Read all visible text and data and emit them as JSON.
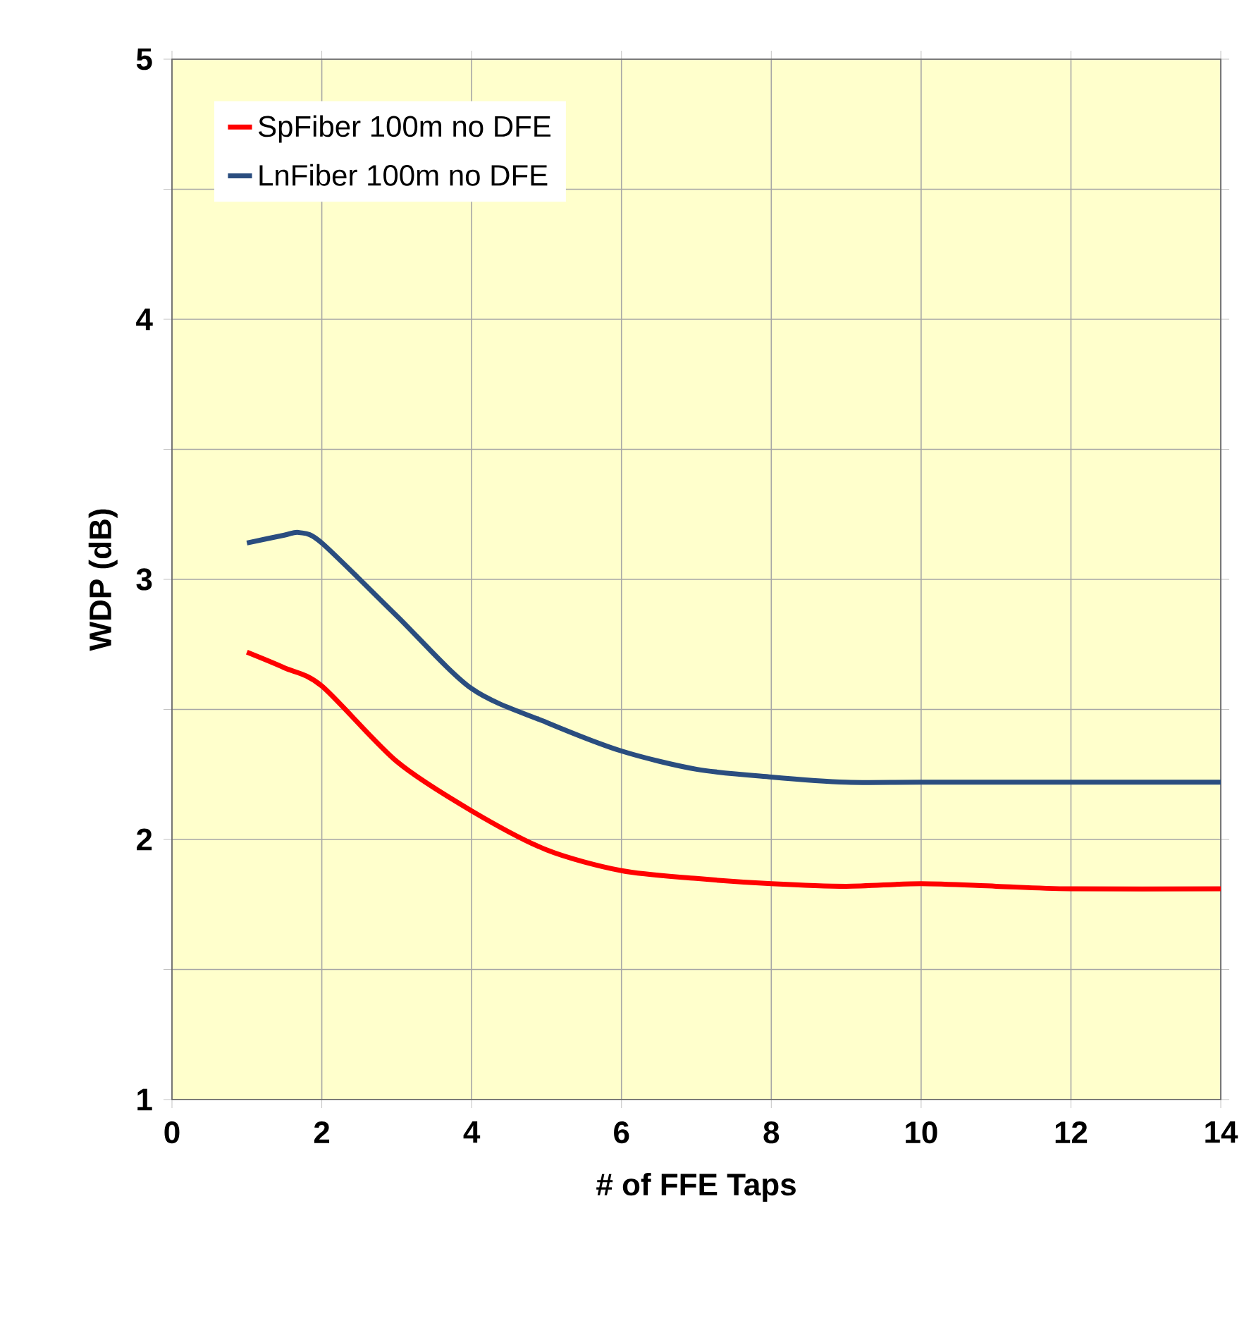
{
  "chart_data": {
    "type": "line",
    "xlabel": "# of FFE Taps",
    "ylabel": "WDP (dB)",
    "xlim": [
      0,
      14
    ],
    "xticks": [
      0,
      2,
      4,
      6,
      8,
      10,
      12,
      14
    ],
    "ylim": [
      1,
      5
    ],
    "yticks": [
      1,
      {
        "value": 1.5,
        "label": null
      },
      2,
      {
        "value": 2.5,
        "label": null
      },
      3,
      {
        "value": 3.5,
        "label": null
      },
      4,
      {
        "value": 4.5,
        "label": null
      },
      5
    ],
    "grid": true,
    "legend": "top left",
    "marker": "none",
    "line_style": "solid",
    "series": [
      {
        "name": "SpFiber 100m no DFE",
        "color": "#ff0000",
        "x": [
          1,
          1.5,
          2,
          3,
          4,
          5,
          6,
          7,
          8,
          9,
          10,
          11,
          12,
          14
        ],
        "values": [
          2.72,
          2.66,
          2.59,
          2.3,
          2.11,
          1.96,
          1.88,
          1.85,
          1.83,
          1.82,
          1.83,
          1.82,
          1.81,
          1.81
        ]
      },
      {
        "name": "LnFiber 100m no DFE",
        "color": "#2a4d7f",
        "x": [
          1,
          1.5,
          1.7,
          2,
          3,
          4,
          5,
          6,
          7,
          8,
          9,
          10,
          12,
          14
        ],
        "values": [
          3.14,
          3.17,
          3.18,
          3.14,
          2.86,
          2.58,
          2.45,
          2.34,
          2.27,
          2.24,
          2.22,
          2.22,
          2.22,
          2.22
        ]
      }
    ]
  }
}
